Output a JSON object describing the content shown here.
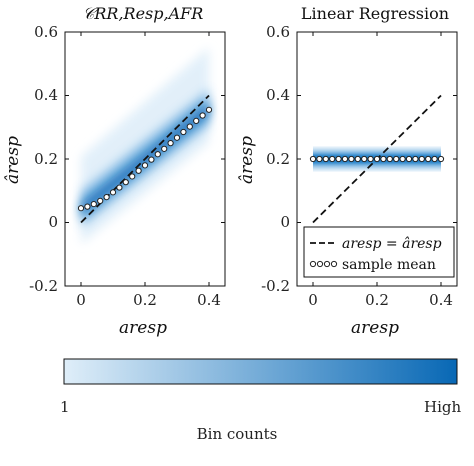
{
  "colors": {
    "density_low": "#dfeef9",
    "density_high": "#0868b5",
    "identity_line": "#111111",
    "marker_fill": "#ffffff",
    "marker_edge": "#222222",
    "axis": "#111111"
  },
  "chart_data": [
    {
      "type": "heatmap",
      "title": "𝒞RR,Resp,AFR",
      "xlabel": "aresp",
      "ylabel": "âresp",
      "xlim": [
        -0.05,
        0.45
      ],
      "ylim": [
        -0.2,
        0.6
      ],
      "xticks": [
        "0",
        "0.2",
        "0.4"
      ],
      "yticks": [
        "-0.2",
        "0",
        "0.2",
        "0.4",
        "0.6"
      ],
      "grid": false,
      "identity_line": {
        "x": [
          0,
          0.4
        ],
        "y": [
          0,
          0.4
        ],
        "style": "dashed"
      },
      "density": {
        "x_range": [
          0,
          0.4
        ],
        "center_intercept": 0.04,
        "center_slope": 0.8,
        "spread": 0.12
      },
      "sample_mean": {
        "x": [
          0.0,
          0.02,
          0.04,
          0.06,
          0.08,
          0.1,
          0.12,
          0.14,
          0.16,
          0.18,
          0.2,
          0.22,
          0.24,
          0.26,
          0.28,
          0.3,
          0.32,
          0.34,
          0.36,
          0.38,
          0.4
        ],
        "y": [
          0.045,
          0.05,
          0.058,
          0.068,
          0.08,
          0.095,
          0.11,
          0.127,
          0.145,
          0.163,
          0.18,
          0.198,
          0.215,
          0.232,
          0.25,
          0.267,
          0.285,
          0.302,
          0.32,
          0.337,
          0.355
        ]
      }
    },
    {
      "type": "heatmap",
      "title": "Linear Regression",
      "xlabel": "aresp",
      "ylabel": "âresp",
      "xlim": [
        -0.05,
        0.45
      ],
      "ylim": [
        -0.2,
        0.6
      ],
      "xticks": [
        "0",
        "0.2",
        "0.4"
      ],
      "yticks": [
        "-0.2",
        "0",
        "0.2",
        "0.4",
        "0.6"
      ],
      "grid": false,
      "identity_line": {
        "x": [
          0,
          0.4
        ],
        "y": [
          0,
          0.4
        ],
        "style": "dashed"
      },
      "density": {
        "x_range": [
          0,
          0.4
        ],
        "center": 0.2,
        "half_height": 0.04
      },
      "sample_mean": {
        "x": [
          0.0,
          0.02,
          0.04,
          0.06,
          0.08,
          0.1,
          0.12,
          0.14,
          0.16,
          0.18,
          0.2,
          0.22,
          0.24,
          0.26,
          0.28,
          0.3,
          0.32,
          0.34,
          0.36,
          0.38,
          0.4
        ],
        "y": [
          0.2,
          0.2,
          0.2,
          0.2,
          0.2,
          0.2,
          0.2,
          0.2,
          0.2,
          0.2,
          0.2,
          0.2,
          0.2,
          0.2,
          0.2,
          0.2,
          0.2,
          0.2,
          0.2,
          0.2,
          0.2
        ]
      },
      "legend": {
        "placement": "bottom-right",
        "entries": [
          {
            "label": "aresp = âresp",
            "style": "dashed"
          },
          {
            "label": "sample mean",
            "style": "markers"
          }
        ]
      }
    }
  ],
  "colorbar": {
    "min_label": "1",
    "max_label": "High",
    "label": "Bin counts"
  }
}
